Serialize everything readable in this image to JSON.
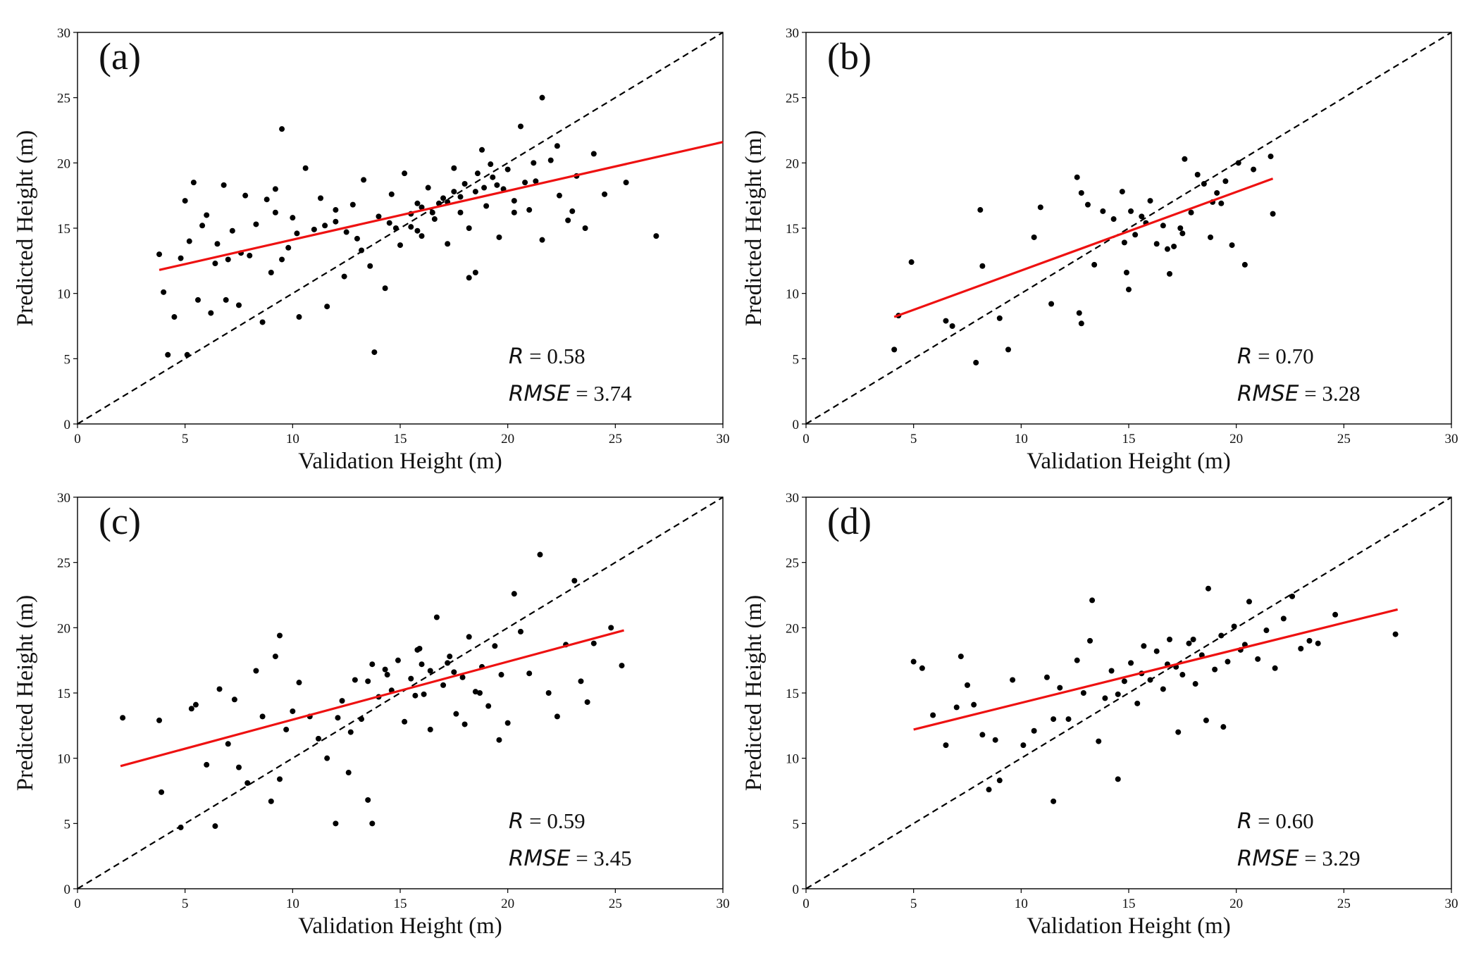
{
  "chart_data": [
    {
      "type": "scatter",
      "panel_label": "(a)",
      "xlabel": "Validation Height (m)",
      "ylabel": "Predicted Height (m)",
      "xlim": [
        0,
        30
      ],
      "ylim": [
        0,
        30
      ],
      "xticks": [
        0,
        5,
        10,
        15,
        20,
        25,
        30
      ],
      "yticks": [
        0,
        5,
        10,
        15,
        20,
        25,
        30
      ],
      "grid": false,
      "reference_line": {
        "style": "dashed",
        "color": "#000000",
        "x": [
          0,
          30
        ],
        "y": [
          0,
          30
        ]
      },
      "fit_line": {
        "color": "#ee1111",
        "x": [
          3.8,
          30
        ],
        "y": [
          11.8,
          21.6
        ]
      },
      "stats": {
        "r_label": "R",
        "r_value": "= 0.58",
        "rmse_label": "RMSE",
        "rmse_value": "= 3.74"
      },
      "points": {
        "x": [
          3.8,
          4.0,
          4.2,
          4.5,
          4.8,
          5.0,
          5.2,
          5.4,
          5.6,
          5.8,
          6.0,
          6.2,
          6.5,
          6.8,
          7.0,
          7.2,
          7.5,
          7.8,
          8.0,
          8.3,
          8.6,
          9.0,
          9.2,
          9.5,
          9.8,
          10.0,
          10.3,
          10.6,
          11.0,
          11.3,
          11.6,
          12.0,
          12.4,
          12.8,
          13.0,
          13.3,
          13.6,
          14.0,
          14.3,
          14.6,
          15.0,
          15.2,
          15.5,
          15.8,
          16.0,
          16.3,
          16.6,
          17.0,
          17.2,
          17.5,
          17.8,
          18.0,
          18.2,
          18.5,
          18.8,
          19.0,
          19.3,
          19.6,
          20.0,
          20.3,
          20.6,
          21.0,
          21.3,
          21.6,
          22.0,
          22.4,
          22.8,
          23.2,
          23.6,
          24.0,
          24.5,
          25.5,
          26.9,
          5.1,
          6.9,
          9.5,
          13.8,
          18.2,
          18.5,
          20.3,
          21.6,
          16.0,
          17.5,
          19.5,
          14.5,
          12.5,
          15.5,
          17.2,
          18.6,
          20.8,
          22.3,
          11.5,
          10.2,
          8.8,
          7.6,
          6.4,
          9.2,
          12.0,
          14.8,
          16.8,
          19.8,
          21.2,
          23.0,
          15.8,
          17.8,
          18.9,
          16.5,
          19.2,
          13.2
        ],
        "y": [
          13.0,
          10.1,
          5.3,
          8.2,
          12.7,
          17.1,
          14.0,
          18.5,
          9.5,
          15.2,
          16.0,
          8.5,
          13.8,
          18.3,
          12.6,
          14.8,
          9.1,
          17.5,
          12.9,
          15.3,
          7.8,
          11.6,
          16.2,
          22.6,
          13.5,
          15.8,
          8.2,
          19.6,
          14.9,
          17.3,
          9.0,
          15.5,
          11.3,
          16.8,
          14.2,
          18.7,
          12.1,
          15.9,
          10.4,
          17.6,
          13.7,
          19.2,
          15.1,
          16.9,
          14.4,
          18.1,
          15.7,
          17.3,
          13.8,
          19.6,
          16.2,
          18.4,
          15.0,
          17.8,
          21.0,
          16.7,
          18.9,
          14.3,
          19.5,
          17.1,
          22.8,
          16.4,
          18.6,
          14.1,
          20.2,
          17.5,
          15.6,
          19.0,
          15.0,
          20.7,
          17.6,
          18.5,
          14.4,
          5.3,
          9.5,
          12.6,
          5.5,
          11.2,
          11.6,
          16.2,
          25.0,
          16.6,
          17.8,
          18.3,
          15.4,
          14.7,
          16.1,
          17.0,
          19.2,
          18.5,
          21.3,
          15.2,
          14.6,
          17.2,
          13.1,
          12.3,
          18.0,
          16.4,
          15.0,
          16.9,
          18.0,
          20.0,
          16.3,
          14.8,
          17.4,
          18.1,
          16.2,
          19.9,
          13.3
        ]
      }
    },
    {
      "type": "scatter",
      "panel_label": "(b)",
      "xlabel": "Validation Height (m)",
      "ylabel": "Predicted Height (m)",
      "xlim": [
        0,
        30
      ],
      "ylim": [
        0,
        30
      ],
      "xticks": [
        0,
        5,
        10,
        15,
        20,
        25,
        30
      ],
      "yticks": [
        0,
        5,
        10,
        15,
        20,
        25,
        30
      ],
      "grid": false,
      "reference_line": {
        "style": "dashed",
        "color": "#000000",
        "x": [
          0,
          30
        ],
        "y": [
          0,
          30
        ]
      },
      "fit_line": {
        "color": "#ee1111",
        "x": [
          4.1,
          21.7
        ],
        "y": [
          8.2,
          18.8
        ]
      },
      "stats": {
        "r_label": "R",
        "r_value": "= 0.70",
        "rmse_label": "RMSE",
        "rmse_value": "= 3.28"
      },
      "points": {
        "x": [
          4.1,
          4.3,
          4.9,
          6.5,
          6.8,
          7.9,
          8.1,
          8.2,
          9.0,
          9.4,
          10.6,
          10.9,
          11.4,
          12.6,
          12.7,
          12.8,
          13.1,
          13.4,
          13.8,
          14.3,
          14.7,
          14.9,
          15.0,
          15.3,
          15.6,
          16.0,
          16.3,
          16.6,
          16.9,
          17.1,
          17.4,
          17.6,
          17.9,
          18.2,
          18.5,
          18.8,
          19.1,
          19.3,
          19.5,
          19.8,
          20.1,
          20.4,
          20.8,
          21.6,
          21.7,
          15.1,
          17.5,
          18.9,
          14.8,
          16.8,
          12.8,
          15.8
        ],
        "y": [
          5.7,
          8.3,
          12.4,
          7.9,
          7.5,
          4.7,
          16.4,
          12.1,
          8.1,
          5.7,
          14.3,
          16.6,
          9.2,
          18.9,
          8.5,
          7.7,
          16.8,
          12.2,
          16.3,
          15.7,
          17.8,
          11.6,
          10.3,
          14.5,
          15.9,
          17.1,
          13.8,
          15.2,
          11.5,
          13.6,
          15.0,
          20.3,
          16.2,
          19.1,
          18.4,
          14.3,
          17.7,
          16.9,
          18.6,
          13.7,
          20.0,
          12.2,
          19.5,
          20.5,
          16.1,
          16.3,
          14.6,
          17.0,
          13.9,
          13.4,
          17.7,
          15.4
        ]
      }
    },
    {
      "type": "scatter",
      "panel_label": "(c)",
      "xlabel": "Validation Height (m)",
      "ylabel": "Predicted Height (m)",
      "xlim": [
        0,
        30
      ],
      "ylim": [
        0,
        30
      ],
      "xticks": [
        0,
        5,
        10,
        15,
        20,
        25,
        30
      ],
      "yticks": [
        0,
        5,
        10,
        15,
        20,
        25,
        30
      ],
      "grid": false,
      "reference_line": {
        "style": "dashed",
        "color": "#000000",
        "x": [
          0,
          30
        ],
        "y": [
          0,
          30
        ]
      },
      "fit_line": {
        "color": "#ee1111",
        "x": [
          2.0,
          25.4
        ],
        "y": [
          9.4,
          19.8
        ]
      },
      "stats": {
        "r_label": "R",
        "r_value": "= 0.59",
        "rmse_label": "RMSE",
        "rmse_value": "= 3.45"
      },
      "points": {
        "x": [
          2.1,
          3.8,
          3.9,
          4.8,
          5.3,
          5.5,
          6.0,
          6.4,
          6.6,
          7.0,
          7.3,
          7.5,
          7.9,
          8.3,
          8.6,
          9.0,
          9.2,
          9.4,
          9.7,
          10.0,
          10.3,
          10.8,
          11.2,
          11.6,
          12.0,
          12.3,
          12.6,
          12.9,
          13.2,
          13.5,
          13.7,
          14.0,
          14.3,
          14.6,
          14.9,
          15.2,
          15.5,
          15.8,
          16.1,
          16.4,
          16.7,
          17.0,
          17.3,
          17.6,
          17.9,
          18.2,
          18.5,
          18.8,
          19.1,
          19.4,
          19.7,
          20.0,
          20.3,
          20.6,
          21.0,
          21.5,
          21.9,
          22.3,
          22.7,
          23.1,
          23.4,
          23.7,
          24.0,
          24.8,
          25.3,
          12.1,
          13.5,
          13.7,
          9.4,
          15.7,
          16.4,
          17.2,
          18.0,
          19.6,
          14.4,
          15.9,
          17.5,
          18.7,
          16.0,
          12.7
        ],
        "y": [
          13.1,
          12.9,
          7.4,
          4.7,
          13.8,
          14.1,
          9.5,
          4.8,
          15.3,
          11.1,
          14.5,
          9.3,
          8.1,
          16.7,
          13.2,
          6.7,
          17.8,
          19.4,
          12.2,
          13.6,
          15.8,
          13.2,
          11.5,
          10.0,
          5.0,
          14.4,
          8.9,
          16.0,
          13.0,
          15.9,
          17.2,
          14.7,
          16.8,
          15.2,
          17.5,
          12.8,
          16.1,
          18.3,
          14.9,
          16.7,
          20.8,
          15.6,
          17.8,
          13.4,
          16.2,
          19.3,
          15.1,
          17.0,
          14.0,
          18.6,
          16.4,
          12.7,
          22.6,
          19.7,
          16.5,
          25.6,
          15.0,
          13.2,
          18.7,
          23.6,
          15.9,
          14.3,
          18.8,
          20.0,
          17.1,
          13.1,
          6.8,
          5.0,
          8.4,
          14.8,
          12.2,
          17.3,
          12.6,
          11.4,
          16.4,
          18.4,
          16.6,
          15.0,
          17.2,
          12.0
        ]
      }
    },
    {
      "type": "scatter",
      "panel_label": "(d)",
      "xlabel": "Validation Height (m)",
      "ylabel": "Predicted Height (m)",
      "xlim": [
        0,
        30
      ],
      "ylim": [
        0,
        30
      ],
      "xticks": [
        0,
        5,
        10,
        15,
        20,
        25,
        30
      ],
      "yticks": [
        0,
        5,
        10,
        15,
        20,
        25,
        30
      ],
      "grid": false,
      "reference_line": {
        "style": "dashed",
        "color": "#000000",
        "x": [
          0,
          30
        ],
        "y": [
          0,
          30
        ]
      },
      "fit_line": {
        "color": "#ee1111",
        "x": [
          5.0,
          27.5
        ],
        "y": [
          12.2,
          21.4
        ]
      },
      "stats": {
        "r_label": "R",
        "r_value": "= 0.60",
        "rmse_label": "RMSE",
        "rmse_value": "= 3.29"
      },
      "points": {
        "x": [
          5.0,
          5.4,
          5.9,
          6.5,
          7.0,
          7.2,
          7.5,
          7.8,
          8.2,
          8.5,
          8.8,
          9.0,
          9.6,
          10.1,
          10.6,
          11.2,
          11.5,
          11.8,
          12.2,
          12.6,
          12.9,
          13.2,
          13.6,
          13.9,
          14.2,
          14.5,
          14.8,
          15.1,
          15.4,
          15.7,
          16.0,
          16.3,
          16.6,
          16.9,
          17.2,
          17.5,
          17.8,
          18.1,
          18.4,
          18.7,
          19.0,
          19.3,
          19.6,
          19.9,
          20.2,
          20.6,
          21.0,
          21.4,
          21.8,
          22.2,
          22.6,
          23.0,
          23.4,
          23.8,
          24.6,
          27.4,
          13.3,
          14.5,
          18.6,
          19.4,
          11.5,
          17.3,
          20.4,
          16.8,
          18.0,
          15.6
        ],
        "y": [
          17.4,
          16.9,
          13.3,
          11.0,
          13.9,
          17.8,
          15.6,
          14.1,
          11.8,
          7.6,
          11.4,
          8.3,
          16.0,
          11.0,
          12.1,
          16.2,
          6.7,
          15.4,
          13.0,
          17.5,
          15.0,
          19.0,
          11.3,
          14.6,
          16.7,
          8.4,
          15.9,
          17.3,
          14.2,
          18.6,
          16.0,
          18.2,
          15.3,
          19.1,
          17.0,
          16.4,
          18.8,
          15.7,
          17.9,
          23.0,
          16.8,
          19.4,
          17.4,
          20.1,
          18.3,
          22.0,
          17.6,
          19.8,
          16.9,
          20.7,
          22.4,
          18.4,
          19.0,
          18.8,
          21.0,
          19.5,
          22.1,
          14.9,
          12.9,
          12.4,
          13.0,
          12.0,
          18.7,
          17.2,
          19.1,
          16.5
        ]
      }
    }
  ]
}
